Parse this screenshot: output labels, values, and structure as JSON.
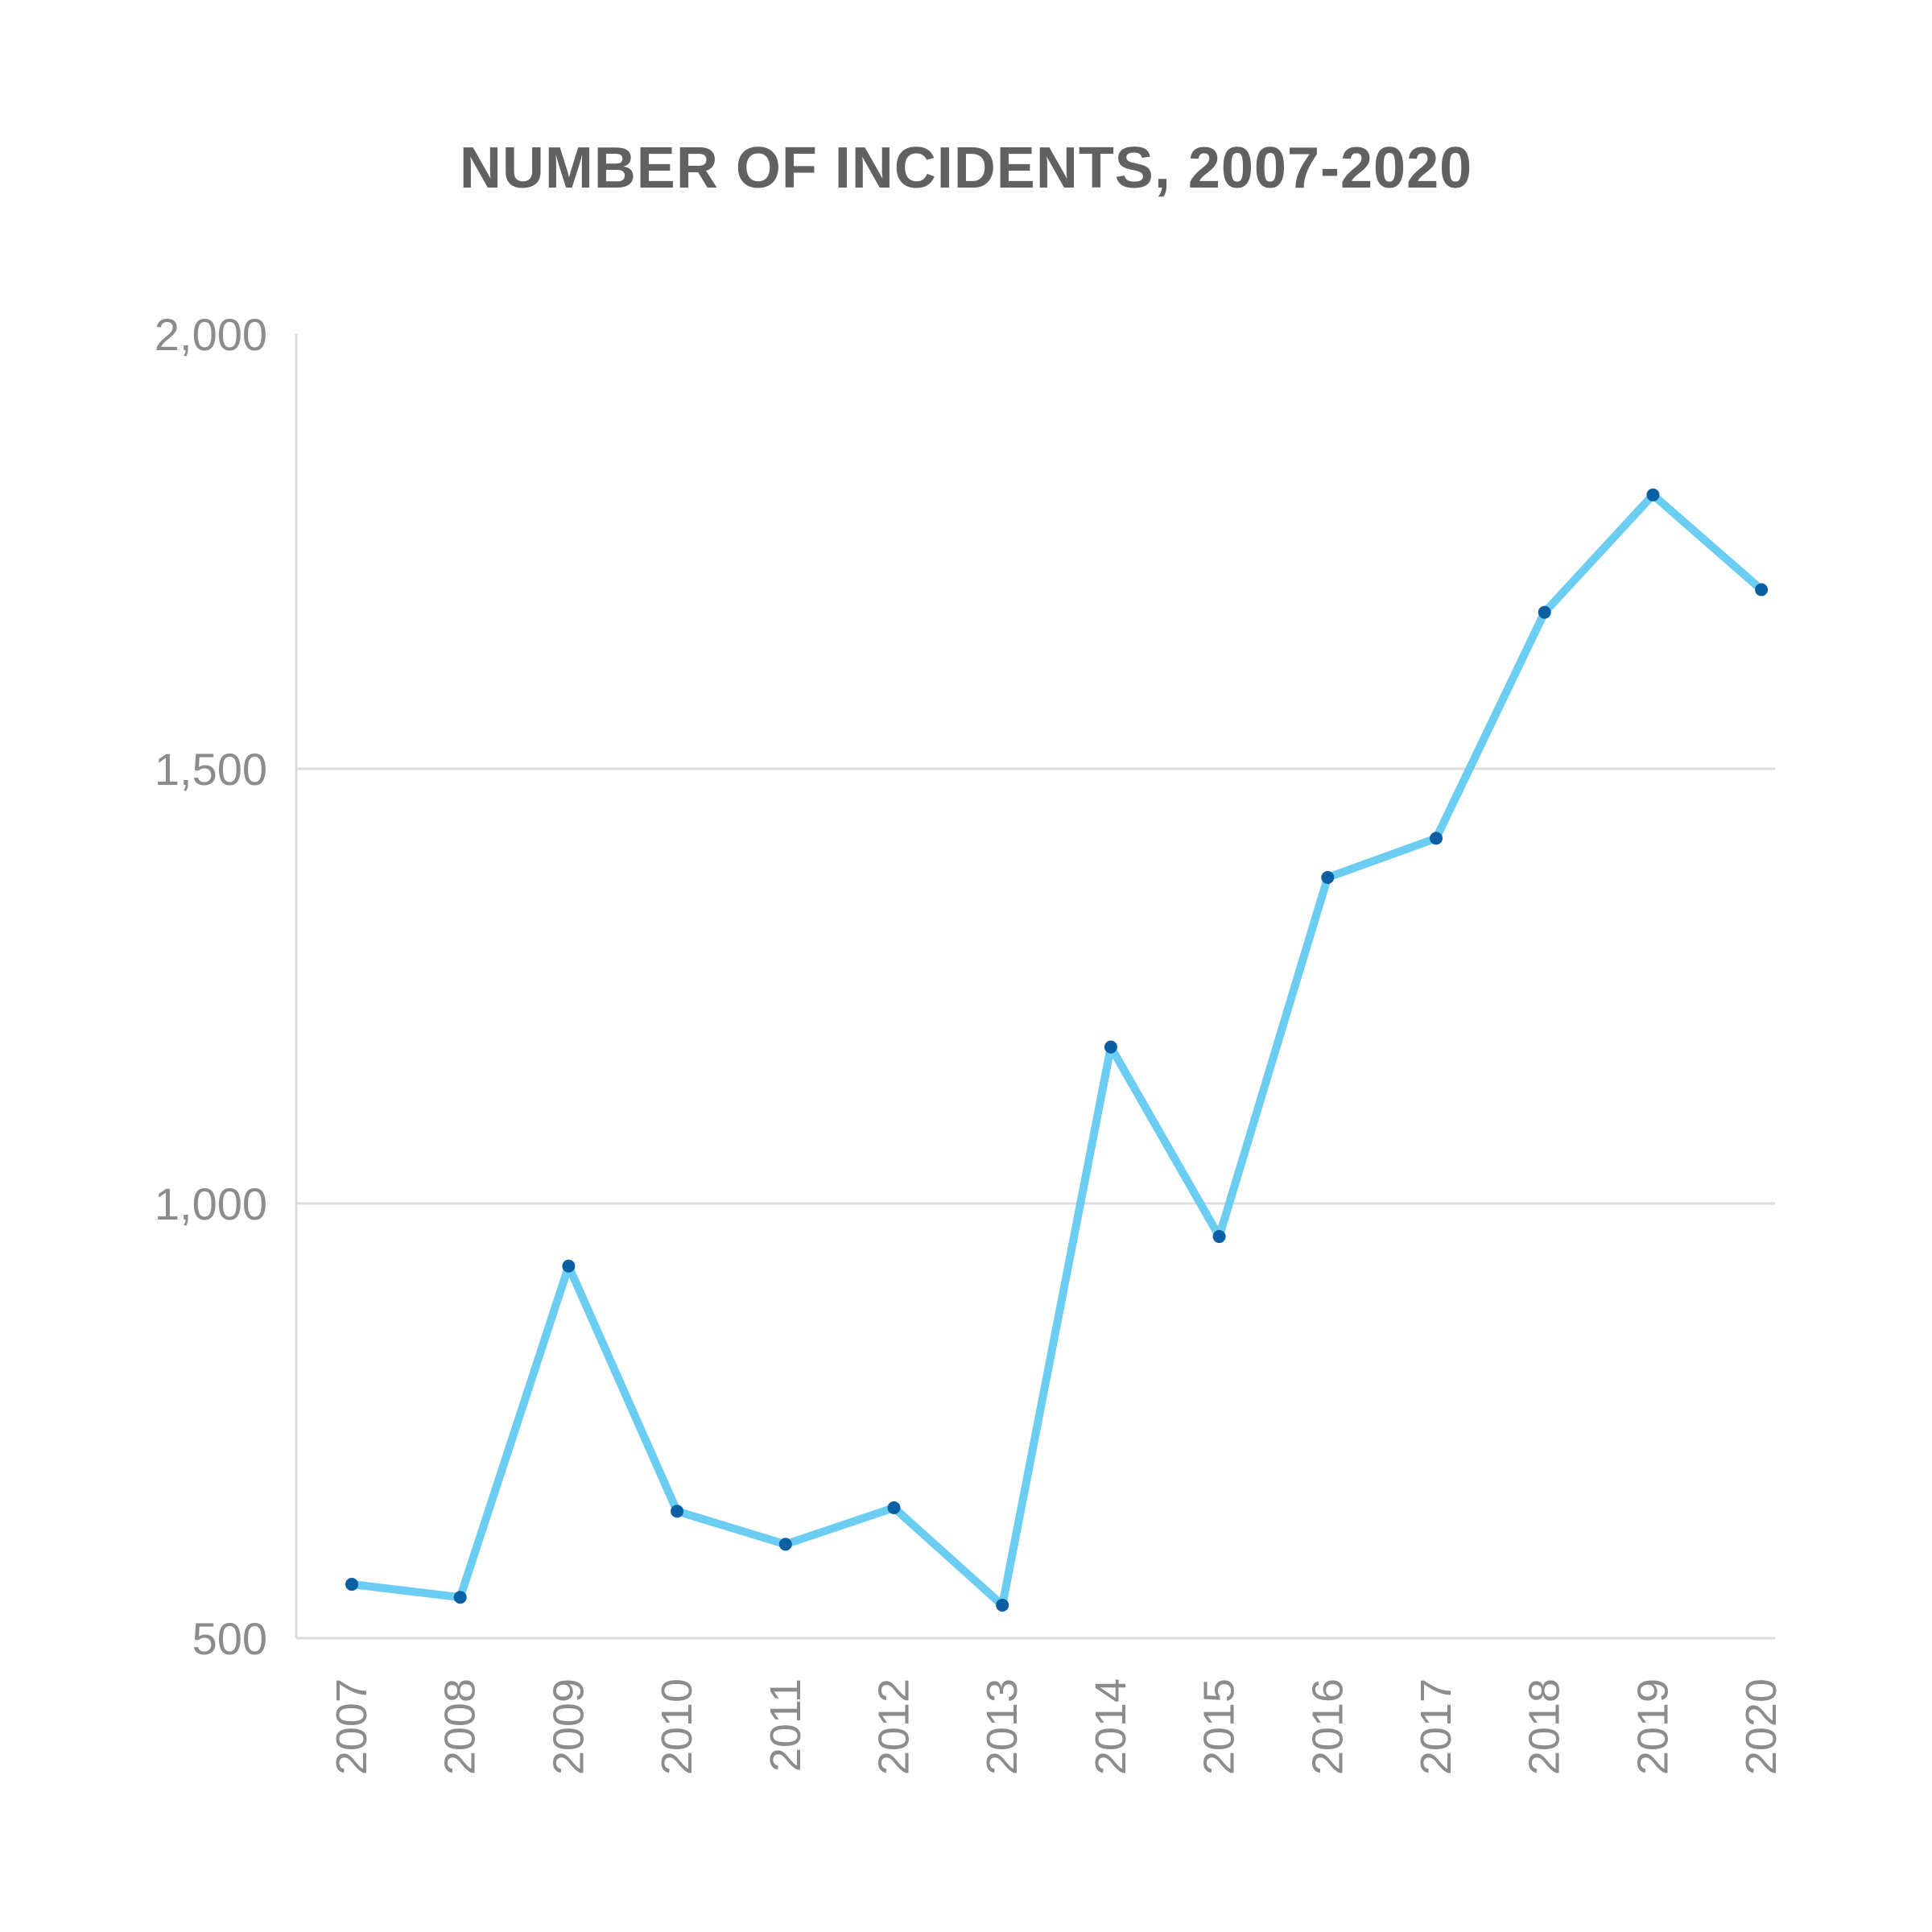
{
  "chart_data": {
    "type": "line",
    "title": "NUMBER OF INCIDENTS, 2007-2020",
    "xlabel": "",
    "ylabel": "",
    "categories": [
      "2007",
      "2008",
      "2009",
      "2010",
      "2011",
      "2012",
      "2013",
      "2014",
      "2015",
      "2016",
      "2017",
      "2018",
      "2019",
      "2020"
    ],
    "series": [
      {
        "values": [
          562,
          547,
          928,
          646,
          608,
          650,
          538,
          1180,
          962,
          1375,
          1420,
          1680,
          1815,
          1706
        ]
      }
    ],
    "yticks": [
      {
        "value": 500,
        "label": "500"
      },
      {
        "value": 1000,
        "label": "1,000"
      },
      {
        "value": 1500,
        "label": "1,500"
      },
      {
        "value": 2000,
        "label": "2,000"
      }
    ],
    "ylim": [
      500,
      2000
    ],
    "grid": true,
    "colors": {
      "line": "#6ccdf3",
      "marker": "#0b5fa3",
      "grid": "#dcdcdc",
      "title": "#616161",
      "tick": "#8c8c8c"
    }
  }
}
